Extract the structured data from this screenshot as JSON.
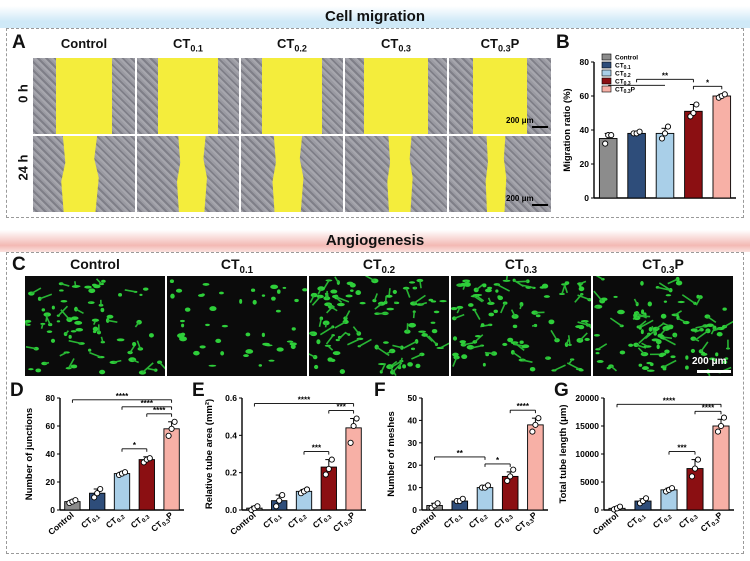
{
  "colors": {
    "control": "#8c8c8c",
    "ct01": "#2e4d7a",
    "ct02": "#a9cfe8",
    "ct03": "#8b0f12",
    "ct03p": "#f7b0a6",
    "banner_top": "#cfe9f7",
    "banner_mid": "#f3b9b4",
    "yellow": "#f4ed3c",
    "tissue": "#8a8a92",
    "fluor_bg": "#0b0b0b",
    "fluor_cell": "#2ecf3a"
  },
  "sections": {
    "migration_title": "Cell migration",
    "angiogenesis_title": "Angiogenesis"
  },
  "panel_letters": {
    "a": "A",
    "b": "B",
    "c": "C",
    "d": "D",
    "e": "E",
    "f": "F",
    "g": "G"
  },
  "panel_a": {
    "columns": [
      {
        "base": "Control",
        "sub": "",
        "suffix": ""
      },
      {
        "base": "CT",
        "sub": "0.1",
        "suffix": ""
      },
      {
        "base": "CT",
        "sub": "0.2",
        "suffix": ""
      },
      {
        "base": "CT",
        "sub": "0.3",
        "suffix": ""
      },
      {
        "base": "CT",
        "sub": "0.3",
        "suffix": "P"
      }
    ],
    "rows": [
      "0 h",
      "24 h"
    ],
    "scale_bar": "200 μm",
    "gap_fraction_0h": [
      0.55,
      0.58,
      0.58,
      0.62,
      0.52
    ],
    "gap_fraction_24h": [
      0.4,
      0.32,
      0.33,
      0.27,
      0.22
    ]
  },
  "panel_c": {
    "columns": [
      {
        "base": "Control",
        "sub": "",
        "suffix": ""
      },
      {
        "base": "CT",
        "sub": "0.1",
        "suffix": ""
      },
      {
        "base": "CT",
        "sub": "0.2",
        "suffix": ""
      },
      {
        "base": "CT",
        "sub": "0.3",
        "suffix": ""
      },
      {
        "base": "CT",
        "sub": "0.3",
        "suffix": "P"
      }
    ],
    "scale_bar": "200 μm"
  },
  "categories": [
    {
      "base": "Control",
      "sub": "",
      "suffix": ""
    },
    {
      "base": "CT",
      "sub": "0.1",
      "suffix": ""
    },
    {
      "base": "CT",
      "sub": "0.2",
      "suffix": ""
    },
    {
      "base": "CT",
      "sub": "0.3",
      "suffix": ""
    },
    {
      "base": "CT",
      "sub": "0.3",
      "suffix": "P"
    }
  ],
  "chart_data": [
    {
      "id": "B",
      "type": "bar",
      "title": "",
      "xlabel": "",
      "ylabel": "Migration ratio (%)",
      "ylim": [
        0,
        80
      ],
      "yticks": [
        0,
        20,
        40,
        60,
        80
      ],
      "values": [
        35,
        38,
        38,
        51,
        60
      ],
      "errors": [
        3,
        1,
        3,
        4,
        1
      ],
      "points": [
        [
          32,
          37,
          37
        ],
        [
          38,
          38,
          39
        ],
        [
          35,
          38,
          42
        ],
        [
          48,
          50,
          55
        ],
        [
          59,
          60,
          61
        ]
      ],
      "legend": [
        "Control",
        "CT0.1",
        "CT0.2",
        "CT0.3",
        "CT0.3P"
      ],
      "legend_placement": "top-left",
      "show_xticklabels": false,
      "significance": [
        {
          "from": 1,
          "to": 3,
          "label": "**",
          "group_from": [
            0,
            2
          ]
        },
        {
          "from": 3,
          "to": 4,
          "label": "*"
        }
      ]
    },
    {
      "id": "D",
      "type": "bar",
      "title": "",
      "xlabel": "",
      "ylabel": "Number of junctions",
      "ylim": [
        0,
        80
      ],
      "yticks": [
        0,
        20,
        40,
        60,
        80
      ],
      "values": [
        6,
        12,
        26,
        36,
        58
      ],
      "errors": [
        1,
        3,
        1,
        2,
        5
      ],
      "points": [
        [
          5,
          6,
          7
        ],
        [
          9,
          12,
          15
        ],
        [
          25,
          26,
          27
        ],
        [
          34,
          36,
          37
        ],
        [
          53,
          58,
          63
        ]
      ],
      "show_xticklabels": true,
      "significance": [
        {
          "from": 0,
          "to": 4,
          "label": "****"
        },
        {
          "from": 2,
          "to": 3,
          "label": "*"
        },
        {
          "from": 3,
          "to": 4,
          "label": "****"
        },
        {
          "from": 2,
          "to": 4,
          "label": "****"
        }
      ]
    },
    {
      "id": "E",
      "type": "bar",
      "title": "",
      "xlabel": "",
      "ylabel": "Relative tube area (mm²)",
      "ylim": [
        0,
        0.6
      ],
      "yticks": [
        0.0,
        0.2,
        0.4,
        0.6
      ],
      "values": [
        0.01,
        0.05,
        0.1,
        0.23,
        0.44
      ],
      "errors": [
        0.01,
        0.03,
        0.01,
        0.04,
        0.05
      ],
      "points": [
        [
          0.0,
          0.01,
          0.02
        ],
        [
          0.02,
          0.05,
          0.08
        ],
        [
          0.09,
          0.1,
          0.11
        ],
        [
          0.19,
          0.22,
          0.27
        ],
        [
          0.36,
          0.45,
          0.49
        ]
      ],
      "show_xticklabels": true,
      "significance": [
        {
          "from": 0,
          "to": 4,
          "label": "****"
        },
        {
          "from": 2,
          "to": 3,
          "label": "***"
        },
        {
          "from": 3,
          "to": 4,
          "label": "***"
        }
      ]
    },
    {
      "id": "F",
      "type": "bar",
      "title": "",
      "xlabel": "",
      "ylabel": "Number of meshes",
      "ylim": [
        0,
        50
      ],
      "yticks": [
        0,
        10,
        20,
        30,
        40,
        50
      ],
      "values": [
        2,
        4,
        10,
        15,
        38
      ],
      "errors": [
        1,
        0.5,
        1,
        2,
        3
      ],
      "points": [
        [
          1,
          2,
          3
        ],
        [
          4,
          4,
          5
        ],
        [
          10,
          10,
          11
        ],
        [
          13,
          15,
          18
        ],
        [
          35,
          38,
          41
        ]
      ],
      "show_xticklabels": true,
      "significance": [
        {
          "from": 0,
          "to": 2,
          "label": "**"
        },
        {
          "from": 2,
          "to": 3,
          "label": "*"
        },
        {
          "from": 3,
          "to": 4,
          "label": "****"
        }
      ]
    },
    {
      "id": "G",
      "type": "bar",
      "title": "",
      "xlabel": "",
      "ylabel": "Total tube length (μm)",
      "ylim": [
        0,
        20000
      ],
      "yticks": [
        0,
        5000,
        10000,
        15000,
        20000
      ],
      "values": [
        300,
        1600,
        3600,
        7400,
        15000
      ],
      "errors": [
        300,
        400,
        300,
        1600,
        1200
      ],
      "points": [
        [
          100,
          300,
          600
        ],
        [
          1200,
          1600,
          2100
        ],
        [
          3300,
          3600,
          3900
        ],
        [
          6000,
          7400,
          9000
        ],
        [
          14000,
          15000,
          16500
        ]
      ],
      "show_xticklabels": true,
      "significance": [
        {
          "from": 0,
          "to": 4,
          "label": "****"
        },
        {
          "from": 2,
          "to": 3,
          "label": "***"
        },
        {
          "from": 3,
          "to": 4,
          "label": "****"
        }
      ]
    }
  ]
}
